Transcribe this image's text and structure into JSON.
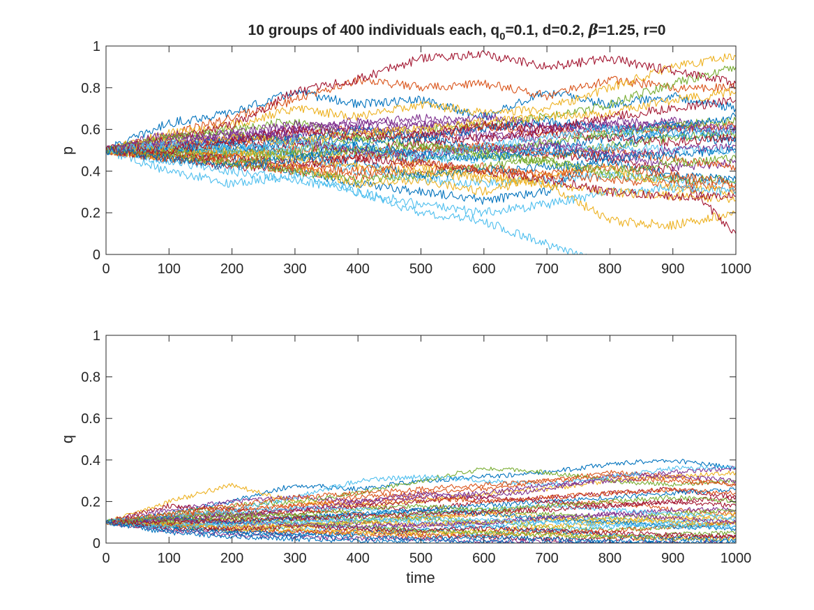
{
  "figure": {
    "title": {
      "prefix": "10 groups of 400 individuals each, q",
      "subscript": "0",
      "mid": "=0.1, d=0.2, ",
      "beta_symbol": "β",
      "suffix": "=1.25, r=0"
    }
  },
  "colors": [
    "#0072BD",
    "#D95319",
    "#EDB120",
    "#7E2F8E",
    "#77AC30",
    "#4DBEEE",
    "#A2142F"
  ],
  "chart_data": [
    {
      "type": "line",
      "panel": "top",
      "xlabel": "",
      "ylabel": "p",
      "xlim": [
        0,
        1000
      ],
      "ylim": [
        0,
        1
      ],
      "xticks": [
        "0",
        "100",
        "200",
        "300",
        "400",
        "500",
        "600",
        "700",
        "800",
        "900",
        "1000"
      ],
      "yticks": [
        "0",
        "0.2",
        "0.4",
        "0.6",
        "0.8",
        "1"
      ],
      "grid": false,
      "legend": "none",
      "series_count": 36,
      "x": [
        0,
        100,
        200,
        300,
        400,
        500,
        600,
        700,
        800,
        900,
        1000
      ],
      "series": [
        {
          "values": [
            0.5,
            0.63,
            0.68,
            0.78,
            0.72,
            0.74,
            0.66,
            0.78,
            0.72,
            0.76,
            0.7
          ]
        },
        {
          "values": [
            0.5,
            0.57,
            0.66,
            0.74,
            0.84,
            0.8,
            0.82,
            0.76,
            0.84,
            0.8,
            0.8
          ]
        },
        {
          "values": [
            0.5,
            0.58,
            0.62,
            0.7,
            0.66,
            0.72,
            0.68,
            0.7,
            0.8,
            0.9,
            0.95
          ]
        },
        {
          "values": [
            0.5,
            0.58,
            0.55,
            0.6,
            0.62,
            0.66,
            0.63,
            0.6,
            0.64,
            0.62,
            0.6
          ]
        },
        {
          "values": [
            0.5,
            0.55,
            0.6,
            0.64,
            0.56,
            0.6,
            0.62,
            0.66,
            0.72,
            0.82,
            0.9
          ]
        },
        {
          "values": [
            0.5,
            0.52,
            0.5,
            0.46,
            0.4,
            0.36,
            0.34,
            0.36,
            0.38,
            0.36,
            0.34
          ]
        },
        {
          "values": [
            0.5,
            0.55,
            0.62,
            0.78,
            0.84,
            0.94,
            0.96,
            0.9,
            0.94,
            0.88,
            0.82
          ]
        },
        {
          "values": [
            0.5,
            0.5,
            0.46,
            0.4,
            0.34,
            0.3,
            0.26,
            0.3,
            0.5,
            0.62,
            0.56
          ]
        },
        {
          "values": [
            0.5,
            0.48,
            0.52,
            0.58,
            0.6,
            0.56,
            0.62,
            0.58,
            0.6,
            0.6,
            0.62
          ]
        },
        {
          "values": [
            0.5,
            0.54,
            0.5,
            0.46,
            0.5,
            0.42,
            0.38,
            0.34,
            0.16,
            0.14,
            0.2
          ]
        },
        {
          "values": [
            0.5,
            0.52,
            0.55,
            0.58,
            0.6,
            0.58,
            0.56,
            0.6,
            0.62,
            0.6,
            0.58
          ]
        },
        {
          "values": [
            0.5,
            0.56,
            0.58,
            0.54,
            0.5,
            0.46,
            0.48,
            0.45,
            0.38,
            0.36,
            0.36
          ]
        },
        {
          "values": [
            0.5,
            0.4,
            0.34,
            0.38,
            0.3,
            0.2,
            0.16,
            0.05,
            -0.05,
            -0.1,
            -0.1
          ]
        },
        {
          "values": [
            0.5,
            0.46,
            0.42,
            0.42,
            0.46,
            0.5,
            0.52,
            0.48,
            0.46,
            0.4,
            0.1
          ]
        },
        {
          "values": [
            0.5,
            0.48,
            0.5,
            0.54,
            0.6,
            0.56,
            0.5,
            0.52,
            0.56,
            0.58,
            0.54
          ]
        },
        {
          "values": [
            0.5,
            0.46,
            0.44,
            0.4,
            0.38,
            0.4,
            0.42,
            0.38,
            0.36,
            0.34,
            0.32
          ]
        },
        {
          "values": [
            0.5,
            0.5,
            0.48,
            0.42,
            0.34,
            0.36,
            0.3,
            0.38,
            0.42,
            0.32,
            0.3
          ]
        },
        {
          "values": [
            0.5,
            0.52,
            0.56,
            0.6,
            0.64,
            0.62,
            0.58,
            0.54,
            0.48,
            0.42,
            0.44
          ]
        },
        {
          "values": [
            0.5,
            0.48,
            0.44,
            0.4,
            0.36,
            0.38,
            0.42,
            0.46,
            0.52,
            0.56,
            0.58
          ]
        },
        {
          "values": [
            0.5,
            0.45,
            0.4,
            0.36,
            0.3,
            0.24,
            0.2,
            0.24,
            0.3,
            0.32,
            0.3
          ]
        },
        {
          "values": [
            0.5,
            0.52,
            0.54,
            0.52,
            0.5,
            0.54,
            0.56,
            0.58,
            0.56,
            0.54,
            0.56
          ]
        },
        {
          "values": [
            0.5,
            0.5,
            0.52,
            0.48,
            0.44,
            0.38,
            0.4,
            0.42,
            0.44,
            0.38,
            0.36
          ]
        },
        {
          "values": [
            0.5,
            0.46,
            0.48,
            0.5,
            0.46,
            0.5,
            0.52,
            0.48,
            0.5,
            0.46,
            0.42
          ]
        },
        {
          "values": [
            0.5,
            0.47,
            0.5,
            0.46,
            0.42,
            0.4,
            0.36,
            0.34,
            0.3,
            0.28,
            0.26
          ]
        },
        {
          "values": [
            0.5,
            0.54,
            0.58,
            0.62,
            0.6,
            0.62,
            0.66,
            0.62,
            0.6,
            0.64,
            0.6
          ]
        },
        {
          "values": [
            0.5,
            0.5,
            0.48,
            0.5,
            0.56,
            0.52,
            0.5,
            0.54,
            0.58,
            0.62,
            0.64
          ]
        },
        {
          "values": [
            0.5,
            0.53,
            0.52,
            0.5,
            0.48,
            0.46,
            0.46,
            0.5,
            0.52,
            0.5,
            0.5
          ]
        },
        {
          "values": [
            0.5,
            0.47,
            0.46,
            0.44,
            0.46,
            0.44,
            0.4,
            0.36,
            0.3,
            0.28,
            0.28
          ]
        },
        {
          "values": [
            0.5,
            0.51,
            0.55,
            0.56,
            0.54,
            0.56,
            0.6,
            0.64,
            0.6,
            0.62,
            0.66
          ]
        },
        {
          "values": [
            0.5,
            0.49,
            0.46,
            0.42,
            0.4,
            0.44,
            0.4,
            0.38,
            0.42,
            0.38,
            0.34
          ]
        },
        {
          "values": [
            0.5,
            0.52,
            0.56,
            0.54,
            0.58,
            0.6,
            0.64,
            0.66,
            0.68,
            0.74,
            0.78
          ]
        },
        {
          "values": [
            0.5,
            0.54,
            0.58,
            0.55,
            0.5,
            0.48,
            0.5,
            0.52,
            0.48,
            0.5,
            0.52
          ]
        },
        {
          "values": [
            0.5,
            0.48,
            0.44,
            0.48,
            0.5,
            0.52,
            0.48,
            0.44,
            0.4,
            0.44,
            0.46
          ]
        },
        {
          "values": [
            0.5,
            0.52,
            0.5,
            0.54,
            0.52,
            0.48,
            0.52,
            0.56,
            0.6,
            0.58,
            0.6
          ]
        },
        {
          "values": [
            0.5,
            0.5,
            0.54,
            0.6,
            0.56,
            0.58,
            0.62,
            0.6,
            0.66,
            0.7,
            0.74
          ]
        },
        {
          "values": [
            0.5,
            0.46,
            0.42,
            0.46,
            0.52,
            0.48,
            0.46,
            0.5,
            0.46,
            0.48,
            0.5
          ]
        }
      ]
    },
    {
      "type": "line",
      "panel": "bottom",
      "xlabel": "time",
      "ylabel": "q",
      "xlim": [
        0,
        1000
      ],
      "ylim": [
        0,
        1
      ],
      "xticks": [
        "0",
        "100",
        "200",
        "300",
        "400",
        "500",
        "600",
        "700",
        "800",
        "900",
        "1000"
      ],
      "yticks": [
        "0",
        "0.2",
        "0.4",
        "0.6",
        "0.8",
        "1"
      ],
      "grid": false,
      "legend": "none",
      "series_count": 36,
      "x": [
        0,
        100,
        200,
        300,
        400,
        500,
        600,
        700,
        800,
        900,
        1000
      ],
      "series": [
        {
          "values": [
            0.1,
            0.14,
            0.2,
            0.28,
            0.26,
            0.3,
            0.32,
            0.34,
            0.38,
            0.4,
            0.36
          ]
        },
        {
          "values": [
            0.1,
            0.12,
            0.16,
            0.18,
            0.22,
            0.24,
            0.26,
            0.3,
            0.34,
            0.32,
            0.28
          ]
        },
        {
          "values": [
            0.1,
            0.2,
            0.28,
            0.2,
            0.18,
            0.2,
            0.24,
            0.26,
            0.3,
            0.32,
            0.34
          ]
        },
        {
          "values": [
            0.1,
            0.16,
            0.2,
            0.22,
            0.2,
            0.24,
            0.22,
            0.26,
            0.32,
            0.34,
            0.36
          ]
        },
        {
          "values": [
            0.1,
            0.14,
            0.18,
            0.2,
            0.24,
            0.3,
            0.36,
            0.34,
            0.3,
            0.28,
            0.3
          ]
        },
        {
          "values": [
            0.1,
            0.12,
            0.16,
            0.22,
            0.3,
            0.32,
            0.3,
            0.28,
            0.32,
            0.36,
            0.36
          ]
        },
        {
          "values": [
            0.1,
            0.18,
            0.16,
            0.14,
            0.18,
            0.16,
            0.2,
            0.22,
            0.24,
            0.26,
            0.22
          ]
        },
        {
          "values": [
            0.1,
            0.08,
            0.1,
            0.12,
            0.14,
            0.16,
            0.18,
            0.2,
            0.22,
            0.24,
            0.26
          ]
        },
        {
          "values": [
            0.1,
            0.1,
            0.12,
            0.16,
            0.14,
            0.12,
            0.14,
            0.18,
            0.2,
            0.16,
            0.14
          ]
        },
        {
          "values": [
            0.1,
            0.09,
            0.1,
            0.12,
            0.1,
            0.12,
            0.14,
            0.12,
            0.1,
            0.12,
            0.14
          ]
        },
        {
          "values": [
            0.1,
            0.12,
            0.14,
            0.12,
            0.1,
            0.08,
            0.1,
            0.12,
            0.14,
            0.16,
            0.16
          ]
        },
        {
          "values": [
            0.1,
            0.08,
            0.06,
            0.08,
            0.1,
            0.12,
            0.1,
            0.08,
            0.06,
            0.08,
            0.1
          ]
        },
        {
          "values": [
            0.1,
            0.1,
            0.08,
            0.06,
            0.08,
            0.06,
            0.04,
            0.06,
            0.08,
            0.1,
            0.12
          ]
        },
        {
          "values": [
            0.1,
            0.07,
            0.06,
            0.05,
            0.06,
            0.04,
            0.03,
            0.02,
            0.02,
            0.03,
            0.04
          ]
        },
        {
          "values": [
            0.1,
            0.08,
            0.06,
            0.04,
            0.05,
            0.06,
            0.08,
            0.06,
            0.04,
            0.02,
            0.01
          ]
        },
        {
          "values": [
            0.1,
            0.09,
            0.08,
            0.06,
            0.04,
            0.03,
            0.04,
            0.05,
            0.06,
            0.08,
            0.1
          ]
        },
        {
          "values": [
            0.1,
            0.12,
            0.1,
            0.08,
            0.06,
            0.05,
            0.06,
            0.08,
            0.1,
            0.12,
            0.12
          ]
        },
        {
          "values": [
            0.1,
            0.06,
            0.04,
            0.03,
            0.02,
            0.02,
            0.01,
            0.01,
            0.0,
            0.0,
            0.0
          ]
        },
        {
          "values": [
            0.1,
            0.11,
            0.12,
            0.14,
            0.16,
            0.18,
            0.16,
            0.14,
            0.12,
            0.14,
            0.16
          ]
        },
        {
          "values": [
            0.1,
            0.08,
            0.1,
            0.1,
            0.12,
            0.1,
            0.08,
            0.1,
            0.12,
            0.1,
            0.08
          ]
        },
        {
          "values": [
            0.1,
            0.12,
            0.14,
            0.16,
            0.18,
            0.2,
            0.22,
            0.2,
            0.18,
            0.2,
            0.22
          ]
        },
        {
          "values": [
            0.1,
            0.07,
            0.05,
            0.04,
            0.03,
            0.02,
            0.03,
            0.02,
            0.01,
            0.02,
            0.02
          ]
        },
        {
          "values": [
            0.1,
            0.13,
            0.16,
            0.18,
            0.2,
            0.22,
            0.2,
            0.22,
            0.24,
            0.26,
            0.24
          ]
        },
        {
          "values": [
            0.1,
            0.09,
            0.07,
            0.06,
            0.05,
            0.04,
            0.05,
            0.04,
            0.03,
            0.02,
            0.02
          ]
        },
        {
          "values": [
            0.1,
            0.11,
            0.13,
            0.16,
            0.2,
            0.22,
            0.24,
            0.28,
            0.3,
            0.32,
            0.3
          ]
        },
        {
          "values": [
            0.1,
            0.1,
            0.12,
            0.1,
            0.08,
            0.06,
            0.05,
            0.04,
            0.03,
            0.04,
            0.05
          ]
        },
        {
          "values": [
            0.1,
            0.13,
            0.15,
            0.17,
            0.16,
            0.14,
            0.16,
            0.18,
            0.16,
            0.14,
            0.12
          ]
        },
        {
          "values": [
            0.1,
            0.08,
            0.07,
            0.08,
            0.07,
            0.06,
            0.07,
            0.06,
            0.05,
            0.04,
            0.03
          ]
        },
        {
          "values": [
            0.1,
            0.12,
            0.1,
            0.12,
            0.14,
            0.16,
            0.14,
            0.12,
            0.1,
            0.08,
            0.07
          ]
        },
        {
          "values": [
            0.1,
            0.14,
            0.18,
            0.22,
            0.24,
            0.26,
            0.28,
            0.3,
            0.32,
            0.3,
            0.28
          ]
        },
        {
          "values": [
            0.1,
            0.09,
            0.08,
            0.09,
            0.1,
            0.09,
            0.1,
            0.11,
            0.12,
            0.1,
            0.09
          ]
        },
        {
          "values": [
            0.1,
            0.11,
            0.1,
            0.09,
            0.08,
            0.09,
            0.1,
            0.12,
            0.14,
            0.12,
            0.1
          ]
        },
        {
          "values": [
            0.1,
            0.12,
            0.14,
            0.13,
            0.12,
            0.14,
            0.16,
            0.18,
            0.2,
            0.22,
            0.2
          ]
        },
        {
          "values": [
            0.1,
            0.08,
            0.09,
            0.1,
            0.11,
            0.12,
            0.11,
            0.1,
            0.09,
            0.08,
            0.08
          ]
        },
        {
          "values": [
            0.1,
            0.1,
            0.11,
            0.12,
            0.13,
            0.14,
            0.15,
            0.16,
            0.18,
            0.2,
            0.18
          ]
        },
        {
          "values": [
            0.1,
            0.05,
            0.03,
            0.02,
            0.01,
            0.01,
            0.01,
            0.0,
            0.0,
            0.0,
            0.0
          ]
        }
      ]
    }
  ]
}
